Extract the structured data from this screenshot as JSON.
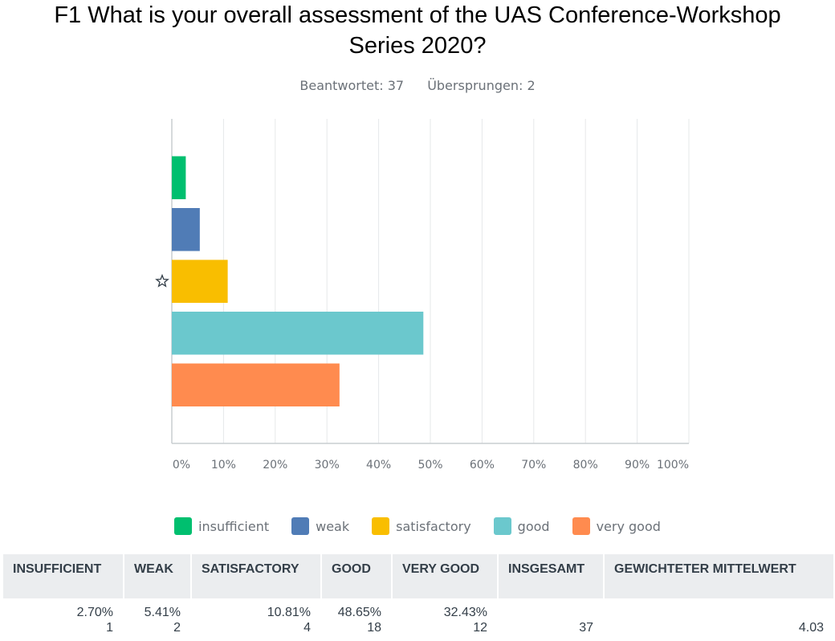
{
  "question": {
    "title_line1": "F1 What is your overall assessment of the UAS Conference-Workshop",
    "title_line2": "Series 2020?",
    "answered_label": "Beantwortet: 37",
    "skipped_label": "Übersprungen: 2"
  },
  "chart_data": {
    "type": "bar",
    "orientation": "horizontal",
    "categories": [
      "insufficient",
      "weak",
      "satisfactory",
      "good",
      "very good"
    ],
    "values": [
      2.7,
      5.41,
      10.81,
      48.65,
      32.43
    ],
    "colors": [
      "#00bf6f",
      "#507cb6",
      "#f9be00",
      "#6bc8cd",
      "#ff8b4f"
    ],
    "xlim": [
      0,
      100
    ],
    "xticks": [
      "0%",
      "10%",
      "20%",
      "30%",
      "40%",
      "50%",
      "60%",
      "70%",
      "80%",
      "90%",
      "100%"
    ],
    "grid": true,
    "marked_category": "satisfactory",
    "marker_icon": "star-outline-icon",
    "legend_position": "bottom"
  },
  "table": {
    "headers": [
      "INSUFFICIENT",
      "WEAK",
      "SATISFACTORY",
      "GOOD",
      "VERY GOOD",
      "INSGESAMT",
      "GEWICHTETER MITTELWERT"
    ],
    "percents": [
      "2.70%",
      "5.41%",
      "10.81%",
      "48.65%",
      "32.43%"
    ],
    "counts": [
      "1",
      "2",
      "4",
      "18",
      "12"
    ],
    "total": "37",
    "weighted_mean": "4.03"
  }
}
